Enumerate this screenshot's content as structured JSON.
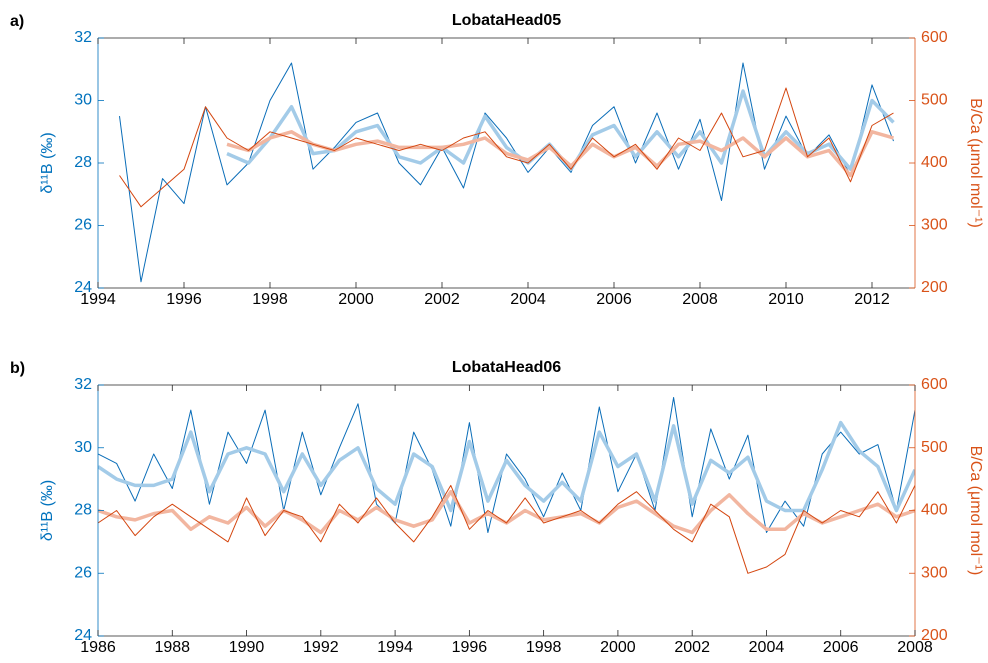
{
  "chart_data": [
    {
      "type": "line",
      "panel_label": "a)",
      "title": "LobataHead05",
      "y_label": "δ¹¹B (‰)",
      "y2_label": "B/Ca (μmol mol⁻¹)",
      "x": [
        1994.5,
        1995,
        1995.5,
        1996,
        1996.5,
        1997,
        1997.5,
        1998,
        1998.5,
        1999,
        1999.5,
        2000,
        2000.5,
        2001,
        2001.5,
        2002,
        2002.5,
        2003,
        2003.5,
        2004,
        2004.5,
        2005,
        2005.5,
        2006,
        2006.5,
        2007,
        2007.5,
        2008,
        2008.5,
        2009,
        2009.5,
        2010,
        2010.5,
        2011,
        2011.5,
        2012,
        2012.5
      ],
      "xlim": [
        1994,
        2013
      ],
      "xticks": [
        1994,
        1996,
        1998,
        2000,
        2002,
        2004,
        2006,
        2008,
        2010,
        2012
      ],
      "ylim": [
        24,
        32
      ],
      "yticks": [
        24,
        26,
        28,
        30,
        32
      ],
      "y2lim": [
        200,
        600
      ],
      "y2ticks": [
        200,
        300,
        400,
        500,
        600
      ],
      "left_axis_color": "#0072bd",
      "right_axis_color": "#d95319",
      "series": [
        {
          "color": "#0a6db8",
          "width": 1,
          "values": [
            29.5,
            24.2,
            27.5,
            26.7,
            29.8,
            27.3,
            28,
            30,
            31.2,
            27.8,
            28.5,
            29.3,
            29.6,
            28,
            27.3,
            28.5,
            27.2,
            29.6,
            28.8,
            27.7,
            28.5,
            27.7,
            29.2,
            29.8,
            28,
            29.6,
            27.8,
            29.4,
            26.8,
            31.2,
            27.8,
            29.5,
            28.2,
            28.9,
            27.6,
            30.5,
            28.7
          ]
        },
        {
          "color": "#a3cbe8",
          "width": 3.5,
          "values": [
            null,
            null,
            null,
            null,
            null,
            28.3,
            28,
            28.8,
            29.8,
            28.3,
            28.4,
            29.0,
            29.2,
            28.2,
            28.0,
            28.5,
            28.0,
            29.5,
            28.5,
            28.0,
            28.6,
            27.8,
            28.9,
            29.2,
            28.2,
            29.0,
            28.2,
            29.0,
            28.0,
            30.3,
            28.2,
            29.0,
            28.3,
            28.6,
            27.8,
            30.0,
            29.3
          ]
        },
        {
          "color": "#f2b6a0",
          "width": 3.5,
          "axis": "y2",
          "values": [
            null,
            null,
            null,
            null,
            null,
            430,
            420,
            440,
            450,
            430,
            420,
            430,
            435,
            425,
            425,
            425,
            430,
            440,
            415,
            405,
            425,
            395,
            430,
            410,
            425,
            395,
            430,
            435,
            420,
            440,
            410,
            440,
            410,
            420,
            380,
            450,
            440
          ]
        },
        {
          "color": "#d4460f",
          "width": 1,
          "axis": "y2",
          "values": [
            380,
            330,
            360,
            390,
            490,
            440,
            420,
            450,
            440,
            430,
            420,
            440,
            430,
            420,
            430,
            420,
            440,
            450,
            410,
            400,
            430,
            390,
            440,
            410,
            430,
            390,
            440,
            420,
            480,
            410,
            420,
            520,
            410,
            440,
            370,
            460,
            480
          ]
        }
      ]
    },
    {
      "type": "line",
      "panel_label": "b)",
      "title": "LobataHead06",
      "y_label": "δ¹¹B (‰)",
      "y2_label": "B/Ca (μmol mol⁻¹)",
      "x": [
        1986,
        1986.5,
        1987,
        1987.5,
        1988,
        1988.5,
        1989,
        1989.5,
        1990,
        1990.5,
        1991,
        1991.5,
        1992,
        1992.5,
        1993,
        1993.5,
        1994,
        1994.5,
        1995,
        1995.5,
        1996,
        1996.5,
        1997,
        1997.5,
        1998,
        1998.5,
        1999,
        1999.5,
        2000,
        2000.5,
        2001,
        2001.5,
        2002,
        2002.5,
        2003,
        2003.5,
        2004,
        2004.5,
        2005,
        2005.5,
        2006,
        2006.5,
        2007,
        2007.5,
        2008
      ],
      "xlim": [
        1986,
        2008
      ],
      "xticks": [
        1986,
        1988,
        1990,
        1992,
        1994,
        1996,
        1998,
        2000,
        2002,
        2004,
        2006,
        2008
      ],
      "ylim": [
        24,
        32
      ],
      "yticks": [
        24,
        26,
        28,
        30,
        32
      ],
      "y2lim": [
        200,
        600
      ],
      "y2ticks": [
        200,
        300,
        400,
        500,
        600
      ],
      "left_axis_color": "#0072bd",
      "right_axis_color": "#d95319",
      "series": [
        {
          "color": "#0a6db8",
          "width": 1,
          "values": [
            29.8,
            29.5,
            28.3,
            29.8,
            28.7,
            31.2,
            28.2,
            30.5,
            29.5,
            31.2,
            28,
            30.5,
            28.5,
            30,
            31.4,
            28.2,
            27.6,
            30.5,
            29.3,
            27.5,
            30.8,
            27.3,
            29.8,
            29,
            27.8,
            29.2,
            28,
            31.3,
            28.6,
            29.8,
            28,
            31.6,
            27.8,
            30.6,
            29,
            30.4,
            27.3,
            28.3,
            27.5,
            29.8,
            30.5,
            29.8,
            30.1,
            28,
            31.2
          ]
        },
        {
          "color": "#a3cbe8",
          "width": 3.5,
          "values": [
            29.4,
            29.0,
            28.8,
            28.8,
            29.0,
            30.5,
            28.6,
            29.8,
            30.0,
            29.8,
            28.6,
            29.8,
            28.8,
            29.6,
            30.0,
            28.7,
            28.2,
            29.8,
            29.4,
            28.0,
            30.2,
            28.3,
            29.6,
            28.8,
            28.3,
            28.9,
            28.3,
            30.5,
            29.4,
            29.8,
            28.3,
            30.7,
            28.2,
            29.6,
            29.2,
            29.7,
            28.3,
            28.0,
            28.0,
            29.3,
            30.8,
            29.9,
            29.4,
            28.0,
            29.3
          ]
        },
        {
          "color": "#f2b6a0",
          "width": 3.5,
          "axis": "y2",
          "values": [
            400,
            390,
            385,
            395,
            400,
            370,
            390,
            380,
            405,
            375,
            400,
            385,
            365,
            400,
            385,
            405,
            385,
            375,
            385,
            430,
            380,
            395,
            380,
            400,
            385,
            390,
            395,
            380,
            405,
            415,
            395,
            375,
            365,
            400,
            425,
            395,
            370,
            370,
            395,
            380,
            390,
            400,
            410,
            390,
            400
          ]
        },
        {
          "color": "#d4460f",
          "width": 1,
          "axis": "y2",
          "values": [
            380,
            400,
            360,
            390,
            410,
            390,
            370,
            350,
            420,
            360,
            400,
            390,
            350,
            410,
            380,
            420,
            380,
            350,
            390,
            440,
            370,
            400,
            380,
            420,
            380,
            390,
            400,
            380,
            410,
            430,
            400,
            370,
            350,
            410,
            390,
            300,
            310,
            330,
            400,
            380,
            400,
            390,
            430,
            380,
            440
          ]
        }
      ]
    }
  ]
}
